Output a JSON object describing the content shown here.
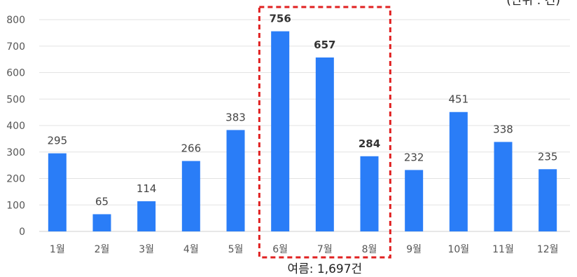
{
  "chart_data": {
    "type": "bar",
    "categories": [
      "1월",
      "2월",
      "3월",
      "4월",
      "5월",
      "6월",
      "7월",
      "8월",
      "9월",
      "10월",
      "11월",
      "12월"
    ],
    "values": [
      295,
      65,
      114,
      266,
      383,
      756,
      657,
      284,
      232,
      451,
      338,
      235
    ],
    "ylim": [
      0,
      800
    ],
    "yticks": [
      0,
      100,
      200,
      300,
      400,
      500,
      600,
      700,
      800
    ],
    "grid": true,
    "bar_color": "#2a7df7",
    "highlight": {
      "categories": [
        "6월",
        "7월",
        "8월"
      ],
      "color": "#e02020",
      "label": "여름: 1,697건"
    },
    "unit_label": "(단위 : 건)"
  }
}
